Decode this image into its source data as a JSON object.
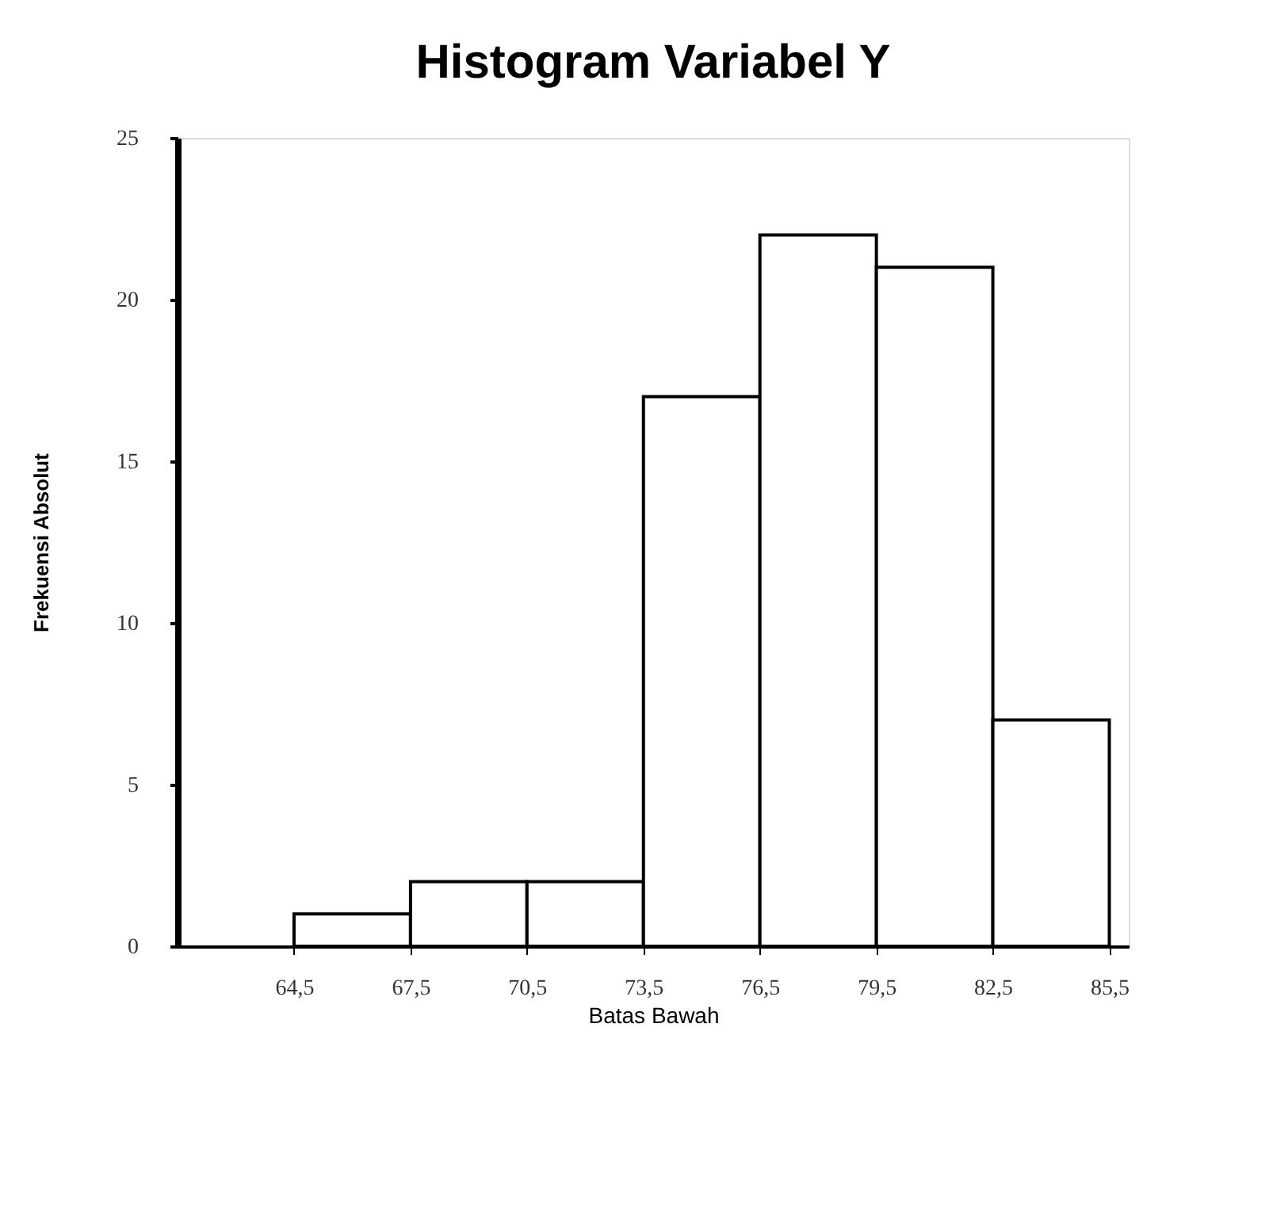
{
  "chart_data": {
    "type": "histogram",
    "title": "Histogram Variabel Y",
    "xlabel": "Batas Bawah",
    "ylabel": "Frekuensi Absolut",
    "bins": [
      64.5,
      67.5,
      70.5,
      73.5,
      76.5,
      79.5,
      82.5,
      85.5
    ],
    "values": [
      1,
      2,
      2,
      17,
      22,
      21,
      7
    ],
    "color": "#ffffff",
    "xlim": [
      61.5,
      86
    ],
    "xticks": [
      {
        "value": 64.5,
        "label": "64,5"
      },
      {
        "value": 67.5,
        "label": "67,5"
      },
      {
        "value": 70.5,
        "label": "70,5"
      },
      {
        "value": 73.5,
        "label": "73,5"
      },
      {
        "value": 76.5,
        "label": "76,5"
      },
      {
        "value": 79.5,
        "label": "79,5"
      },
      {
        "value": 82.5,
        "label": "82,5"
      },
      {
        "value": 85.5,
        "label": "85,5"
      }
    ],
    "ylim": [
      0,
      25
    ],
    "yticks": [
      0,
      5,
      10,
      15,
      20,
      25
    ],
    "grid": false
  }
}
